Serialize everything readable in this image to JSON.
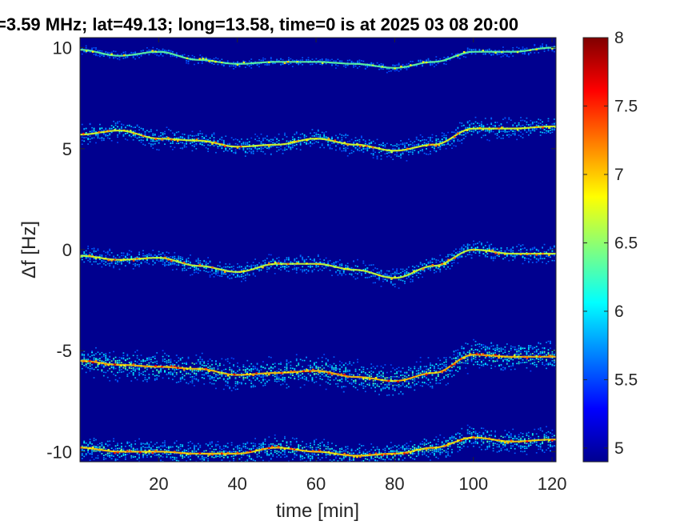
{
  "chart_data": {
    "type": "heatmap",
    "title": "=3.59 MHz;  lat=49.13; long=13.58, time=0 is at 2025 03 08 20:00",
    "xlabel": "time [min]",
    "ylabel": "Δf [Hz]",
    "xlim": [
      0,
      121
    ],
    "ylim": [
      -10.5,
      10.5
    ],
    "x_ticks": [
      20,
      40,
      60,
      80,
      100,
      120
    ],
    "y_ticks": [
      10,
      5,
      0,
      -5,
      -10
    ],
    "x_tick_labels": [
      "20",
      "40",
      "60",
      "80",
      "100",
      "120"
    ],
    "y_tick_labels": [
      "10",
      "5",
      "0",
      "-5",
      "-10"
    ],
    "colorbar": {
      "colormap": "jet",
      "range": [
        4.9,
        8
      ],
      "ticks": [
        8,
        7.5,
        7,
        6.5,
        6,
        5.5,
        5
      ],
      "tick_labels": [
        "8",
        "7.5",
        "7",
        "6.5",
        "6",
        "5.5",
        "5"
      ]
    },
    "background_value": 5,
    "background_color": "#00008f",
    "traces": [
      {
        "offset": 10,
        "intensity": 0.35,
        "spread": 0.25,
        "time": [
          0,
          10,
          20,
          30,
          40,
          50,
          60,
          70,
          80,
          90,
          100,
          110,
          120
        ],
        "delta_f": [
          9.9,
          9.6,
          9.8,
          9.4,
          9.2,
          9.3,
          9.3,
          9.2,
          9.0,
          9.3,
          9.8,
          9.8,
          10.0
        ]
      },
      {
        "offset": 5,
        "intensity": 0.7,
        "spread": 0.5,
        "time": [
          0,
          10,
          20,
          30,
          40,
          50,
          60,
          70,
          80,
          90,
          100,
          110,
          120
        ],
        "delta_f": [
          5.7,
          5.9,
          5.5,
          5.4,
          5.1,
          5.2,
          5.5,
          5.2,
          4.9,
          5.2,
          6.0,
          6.0,
          6.1
        ]
      },
      {
        "offset": 0,
        "intensity": 0.65,
        "spread": 0.45,
        "time": [
          0,
          10,
          20,
          30,
          40,
          50,
          60,
          70,
          80,
          90,
          100,
          110,
          120
        ],
        "delta_f": [
          -0.3,
          -0.5,
          -0.4,
          -0.8,
          -1.1,
          -0.7,
          -0.7,
          -1.0,
          -1.4,
          -0.8,
          0.0,
          -0.2,
          -0.2
        ]
      },
      {
        "offset": -5,
        "intensity": 0.95,
        "spread": 0.7,
        "time": [
          0,
          10,
          20,
          30,
          40,
          50,
          60,
          70,
          80,
          90,
          100,
          110,
          120
        ],
        "delta_f": [
          -5.5,
          -5.7,
          -5.8,
          -5.9,
          -6.2,
          -6.1,
          -6.0,
          -6.3,
          -6.5,
          -6.1,
          -5.2,
          -5.3,
          -5.3
        ]
      },
      {
        "offset": -10,
        "intensity": 0.9,
        "spread": 0.55,
        "time": [
          0,
          10,
          20,
          30,
          40,
          50,
          60,
          70,
          80,
          90,
          100,
          110,
          120
        ],
        "delta_f": [
          -9.8,
          -10.0,
          -10.0,
          -10.1,
          -10.1,
          -9.8,
          -10.0,
          -10.2,
          -10.1,
          -9.8,
          -9.3,
          -9.5,
          -9.4
        ]
      }
    ]
  }
}
